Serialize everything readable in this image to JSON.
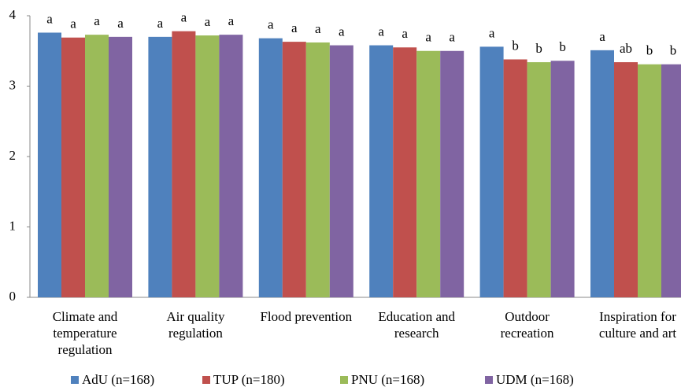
{
  "chart_data": {
    "type": "bar",
    "categories": [
      [
        "Climate and",
        "temperature",
        "regulation"
      ],
      [
        "Air quality",
        "regulation"
      ],
      [
        "Flood prevention"
      ],
      [
        "Education and",
        "research"
      ],
      [
        "Outdoor",
        "recreation"
      ],
      [
        "Inspiration for",
        "culture and art"
      ]
    ],
    "series": [
      {
        "name": "AdU (n=168)",
        "color": "#4f81bd",
        "values": [
          3.76,
          3.7,
          3.68,
          3.58,
          3.56,
          3.51
        ],
        "letters": [
          "a",
          "a",
          "a",
          "a",
          "a",
          "a"
        ]
      },
      {
        "name": "TUP (n=180)",
        "color": "#c0504d",
        "values": [
          3.69,
          3.78,
          3.63,
          3.55,
          3.38,
          3.34
        ],
        "letters": [
          "a",
          "a",
          "a",
          "a",
          "b",
          "ab"
        ]
      },
      {
        "name": "PNU (n=168)",
        "color": "#9bbb59",
        "values": [
          3.73,
          3.72,
          3.62,
          3.5,
          3.34,
          3.31
        ],
        "letters": [
          "a",
          "a",
          "a",
          "a",
          "b",
          "b"
        ]
      },
      {
        "name": "UDM (n=168)",
        "color": "#8064a2",
        "values": [
          3.7,
          3.73,
          3.58,
          3.5,
          3.36,
          3.31
        ],
        "letters": [
          "a",
          "a",
          "a",
          "a",
          "b",
          "b"
        ]
      }
    ],
    "ylim": [
      0,
      4
    ],
    "yticks": [
      0,
      1,
      2,
      3,
      4
    ],
    "grid": false,
    "legend": "bottom"
  }
}
